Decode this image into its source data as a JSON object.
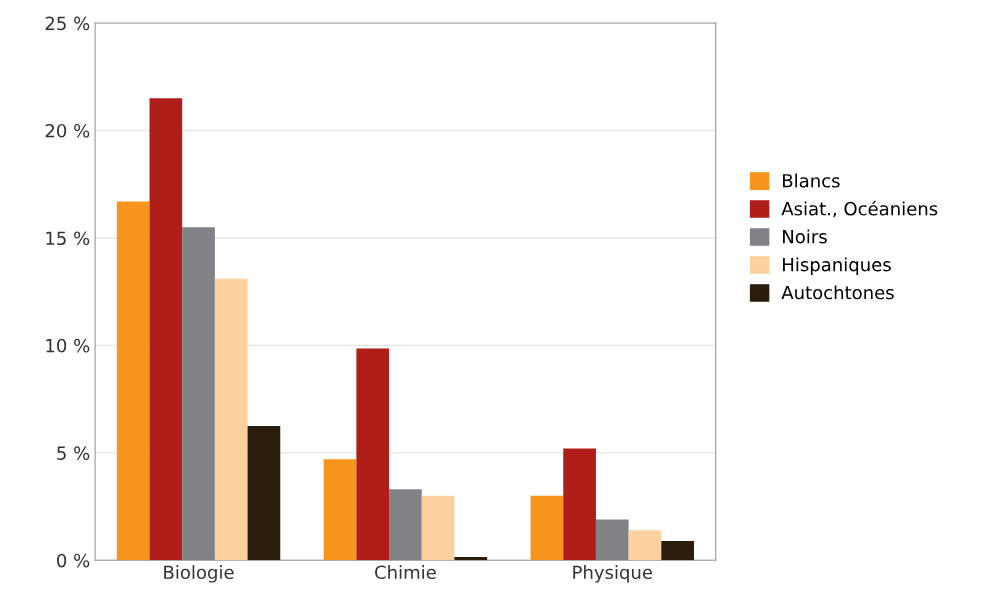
{
  "chart_data": {
    "type": "bar",
    "categories": [
      "Biologie",
      "Chimie",
      "Physique"
    ],
    "series": [
      {
        "name": "Blancs",
        "color": "#f7941d",
        "values": [
          16.7,
          4.7,
          3.0
        ]
      },
      {
        "name": "Asiat., Océaniens",
        "color": "#b01e1a",
        "values": [
          21.5,
          9.85,
          5.2
        ]
      },
      {
        "name": "Noirs",
        "color": "#808285",
        "values": [
          15.5,
          3.3,
          1.9
        ]
      },
      {
        "name": "Hispaniques",
        "color": "#fdd09f",
        "values": [
          13.1,
          3.0,
          1.4
        ]
      },
      {
        "name": "Autochtones",
        "color": "#2b1d0e",
        "values": [
          6.25,
          0.15,
          0.9
        ]
      }
    ],
    "ylim": [
      0,
      25
    ],
    "yticks": [
      {
        "value": 0,
        "label": "0 %"
      },
      {
        "value": 5,
        "label": "5 %"
      },
      {
        "value": 10,
        "label": "10 %"
      },
      {
        "value": 15,
        "label": "15 %"
      },
      {
        "value": 20,
        "label": "20 %"
      },
      {
        "value": 25,
        "label": "25 %"
      }
    ],
    "grid": "y",
    "legend": "right"
  }
}
